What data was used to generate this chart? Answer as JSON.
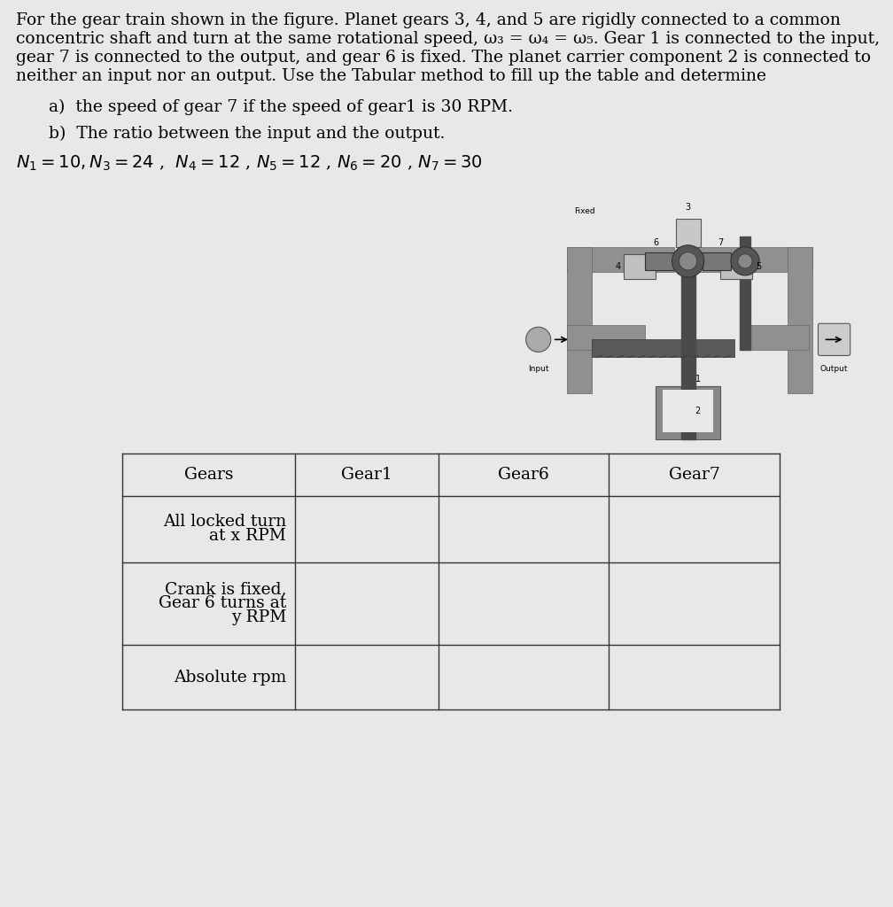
{
  "bg_color": "#e8e8e8",
  "text_color": "#000000",
  "body_lines": [
    "For the gear train shown in the figure. Planet gears 3, 4, and 5 are rigidly connected to a common",
    "concentric shaft and turn at the same rotational speed, ω₃ = ω₄ = ω₅. Gear 1 is connected to the input,",
    "gear 7 is connected to the output, and gear 6 is fixed. The planet carrier component 2 is connected to",
    "neither an input nor an output. Use the Tabular method to fill up the table and determine"
  ],
  "sub_a": "a)  the speed of gear 7 if the speed of gear1 is 30 RPM.",
  "sub_b": "b)  The ratio between the input and the output.",
  "table_headers": [
    "Gears",
    "Gear1",
    "Gear6",
    "Gear7"
  ],
  "row1_label_line1": "All locked turn",
  "row1_label_line2": "at x RPM",
  "row2_label_line1": "Crank is fixed,",
  "row2_label_line2": "Gear 6 turns at",
  "row2_label_line3": "y RPM",
  "row3_label": "Absolute rpm",
  "font_size_body": 13.5,
  "font_size_sub": 13.5,
  "font_size_table": 13.5
}
